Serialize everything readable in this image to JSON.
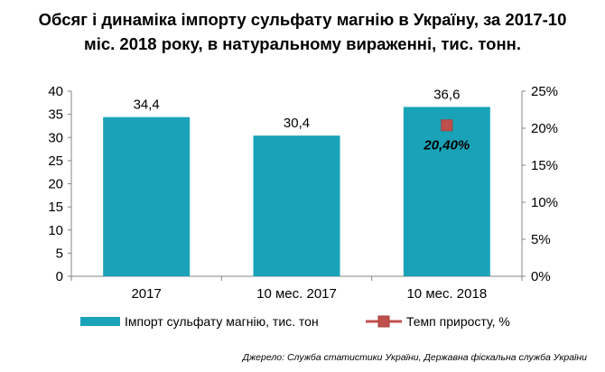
{
  "title_line1": "Обсяг і динаміка імпорту сульфату магнію в Україну, за 2017-10",
  "title_line2": "міс. 2018 року, в натуральному вираженні, тис. тонн.",
  "source": "Джерело: Служба статистики України, Державна фіскальна служба України",
  "colors": {
    "bar": "#1aa3b8",
    "marker": "#c0504d",
    "axis": "#868686",
    "grid": "#d9d9d9"
  },
  "chart_data": {
    "type": "bar",
    "categories": [
      "2017",
      "10 мес. 2017",
      "10 мес. 2018"
    ],
    "series": [
      {
        "name": "Імпорт сульфату магнію, тис. тон",
        "type": "bar",
        "axis": "left",
        "values": [
          34.4,
          30.4,
          36.6
        ],
        "labels": [
          "34,4",
          "30,4",
          "36,6"
        ]
      },
      {
        "name": "Темп приросту,  %",
        "type": "line-marker",
        "axis": "right",
        "values": [
          null,
          null,
          20.4
        ],
        "labels": [
          "",
          "",
          "20,40%"
        ]
      }
    ],
    "y_left": {
      "min": 0,
      "max": 40,
      "step": 5,
      "ticks": [
        "0",
        "5",
        "10",
        "15",
        "20",
        "25",
        "30",
        "35",
        "40"
      ]
    },
    "y_right": {
      "min": 0,
      "max": 25,
      "step": 5,
      "ticks": [
        "0%",
        "5%",
        "10%",
        "15%",
        "20%",
        "25%"
      ]
    },
    "grid": false,
    "legend_position": "bottom"
  }
}
